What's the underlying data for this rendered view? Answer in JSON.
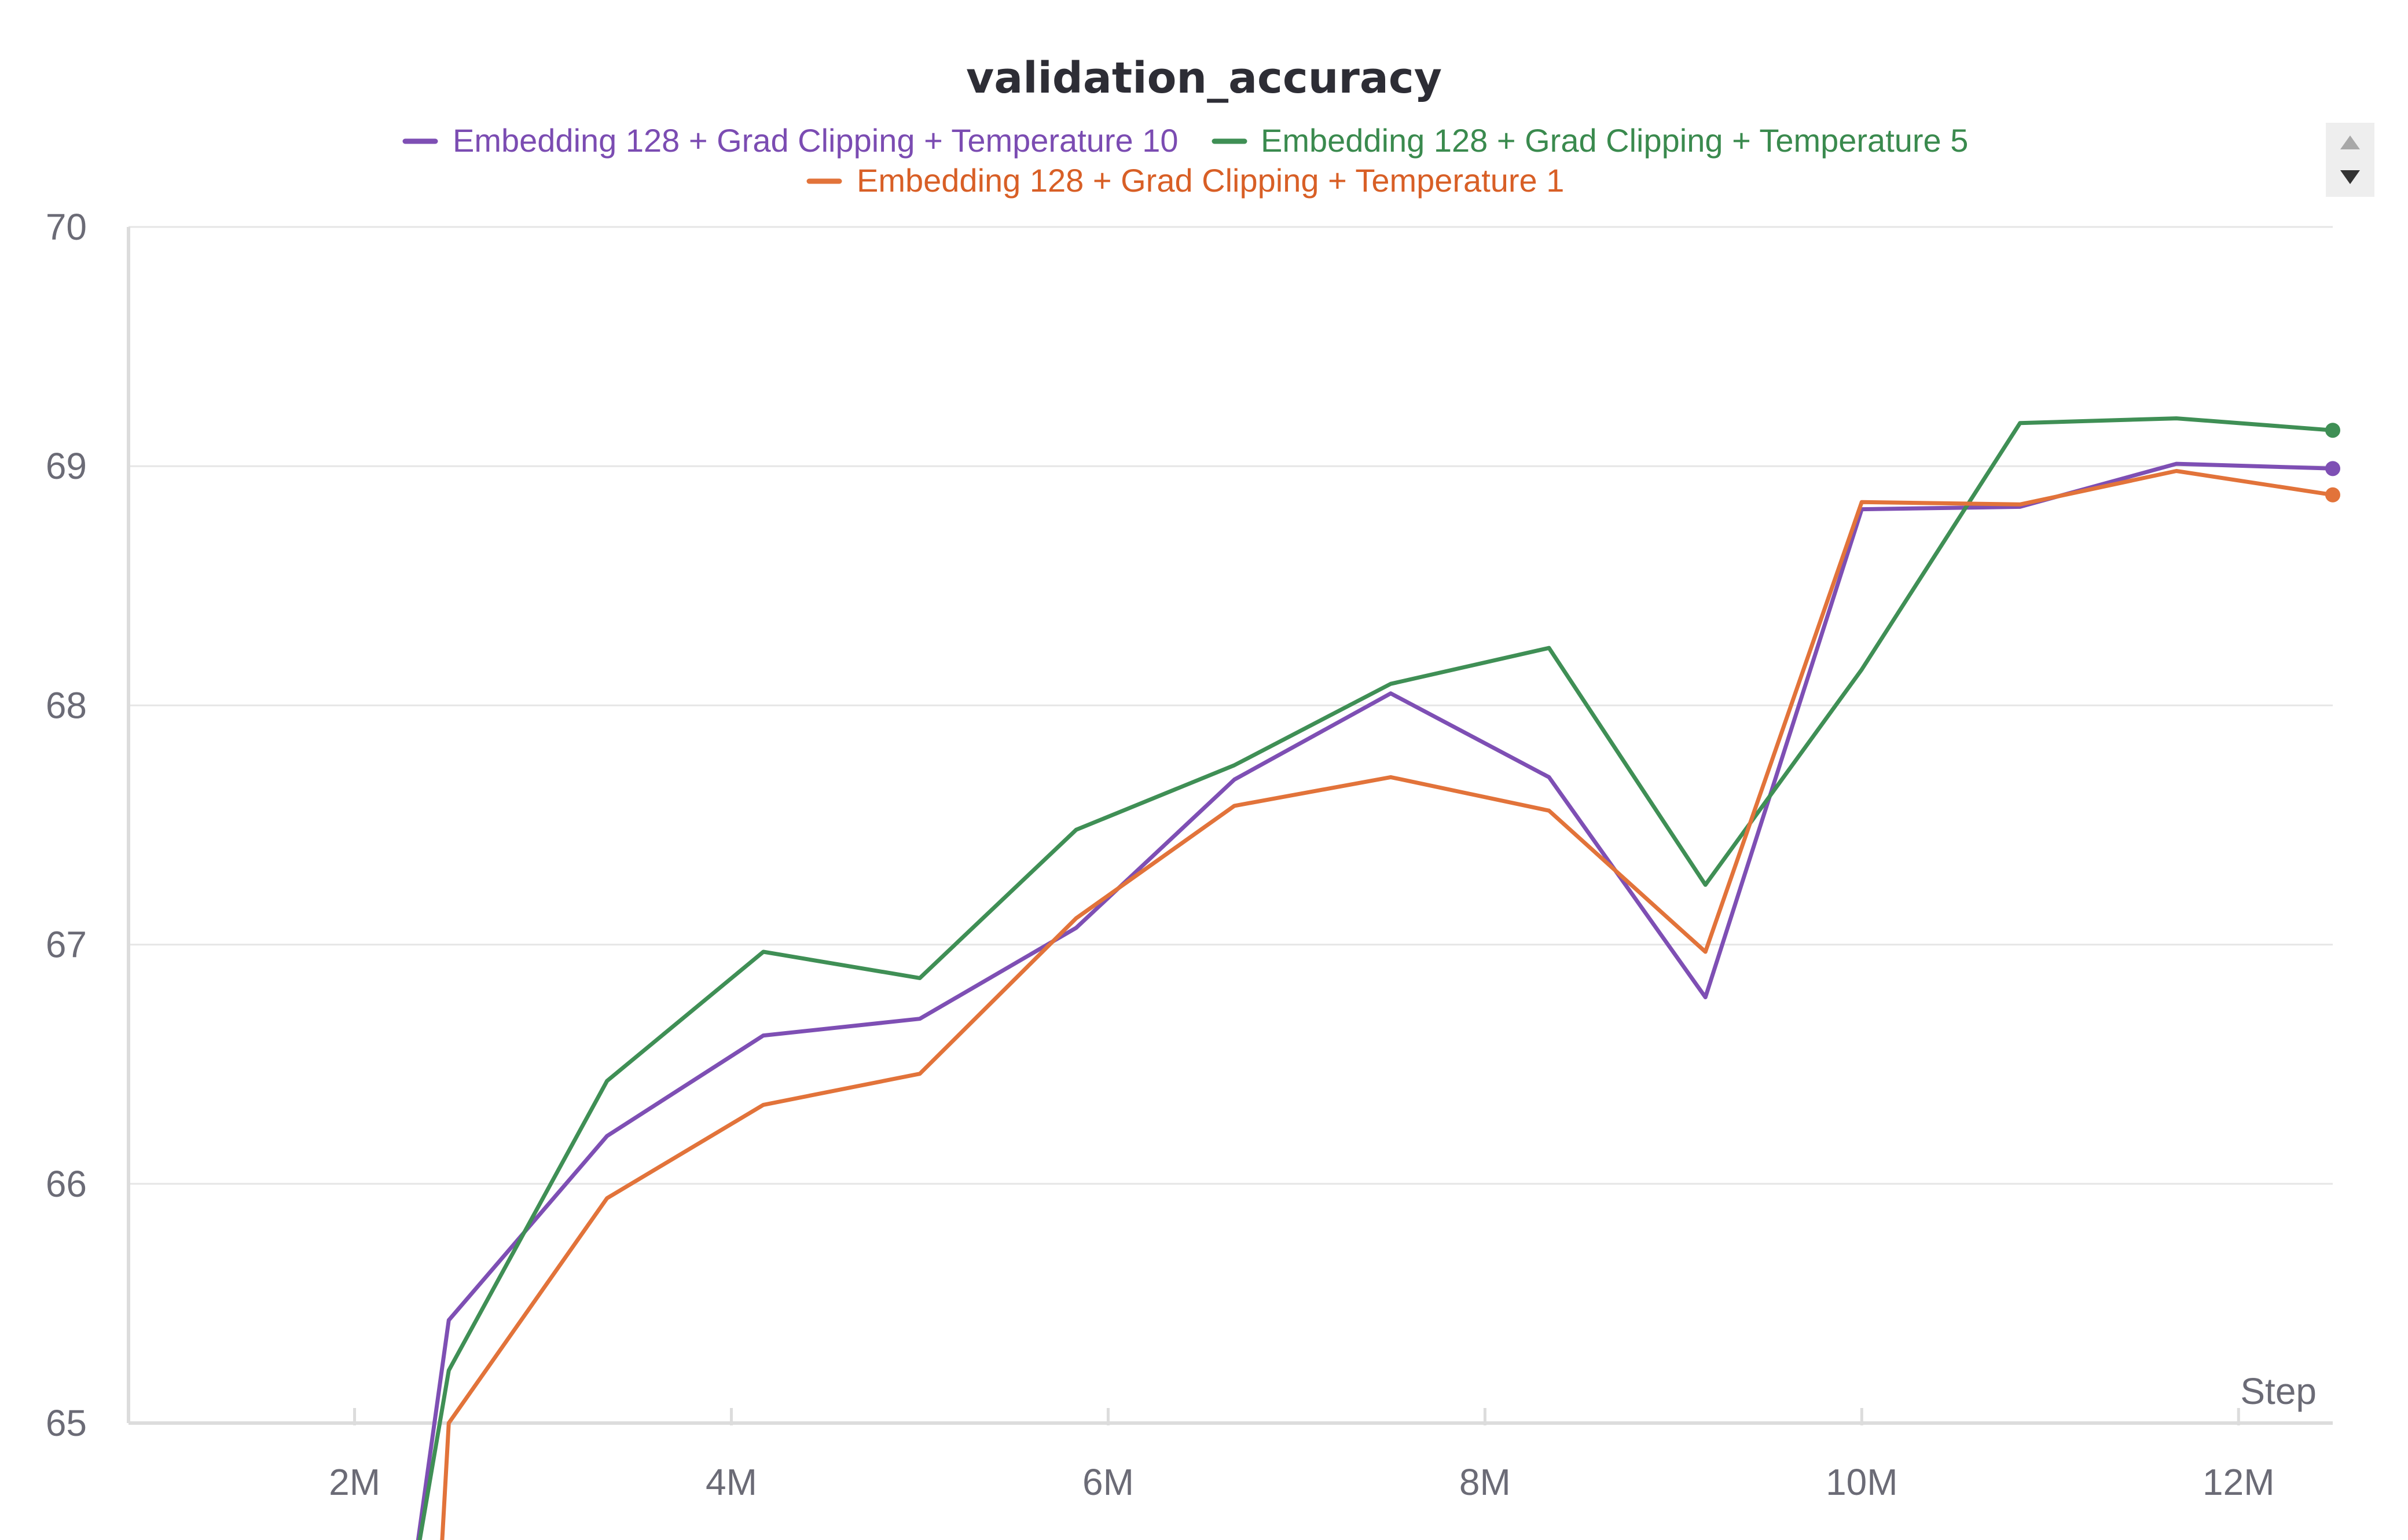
{
  "chart_data": {
    "type": "line",
    "title": "validation_accuracy",
    "xlabel": "Step",
    "ylabel": "",
    "xlim": [
      800000,
      12500000
    ],
    "ylim": [
      65,
      70
    ],
    "x_ticks": [
      2000000,
      4000000,
      6000000,
      8000000,
      10000000,
      12000000
    ],
    "x_tick_labels": [
      "2M",
      "4M",
      "6M",
      "8M",
      "10M",
      "12M"
    ],
    "y_ticks": [
      65,
      66,
      67,
      68,
      69,
      70
    ],
    "y_tick_labels": [
      "65",
      "66",
      "67",
      "68",
      "69",
      "70"
    ],
    "grid": true,
    "legend_position": "top-center",
    "series": [
      {
        "name": "Embedding 128 + Grad Clipping + Temperature 10",
        "color": "#7e4fb4",
        "x": [
          2300000,
          2500000,
          3340000,
          4170000,
          5000000,
          5830000,
          6670000,
          7500000,
          8340000,
          9170000,
          10000000,
          10840000,
          11670000,
          12500000
        ],
        "y": [
          64.3,
          65.43,
          66.2,
          66.62,
          66.69,
          67.07,
          67.69,
          68.05,
          67.7,
          66.78,
          68.82,
          68.83,
          69.01,
          68.99
        ]
      },
      {
        "name": "Embedding 128 + Grad Clipping + Temperature 5",
        "color": "#3f8f55",
        "x": [
          2300000,
          2500000,
          3340000,
          4170000,
          5000000,
          5830000,
          6670000,
          7500000,
          8340000,
          9170000,
          10000000,
          10840000,
          11670000,
          12500000
        ],
        "y": [
          64.3,
          65.22,
          66.43,
          66.97,
          66.86,
          67.48,
          67.75,
          68.09,
          68.24,
          67.25,
          68.15,
          69.18,
          69.2,
          69.15
        ]
      },
      {
        "name": "Embedding 128 + Grad Clipping + Temperature 1",
        "color": "#e2733a",
        "x": [
          2450000,
          2500000,
          3340000,
          4170000,
          5000000,
          5830000,
          6670000,
          7500000,
          8340000,
          9170000,
          10000000,
          10840000,
          11670000,
          12500000
        ],
        "y": [
          64.3,
          65.0,
          65.94,
          66.33,
          66.46,
          67.11,
          67.58,
          67.7,
          67.56,
          66.97,
          68.85,
          68.84,
          68.98,
          68.88
        ]
      }
    ]
  },
  "legend_text_colors": [
    "#7b4cb2",
    "#3a8a4e",
    "#d85f26"
  ],
  "scroll_controls": {
    "up_icon": "triangle-up-icon",
    "down_icon": "triangle-down-icon"
  }
}
